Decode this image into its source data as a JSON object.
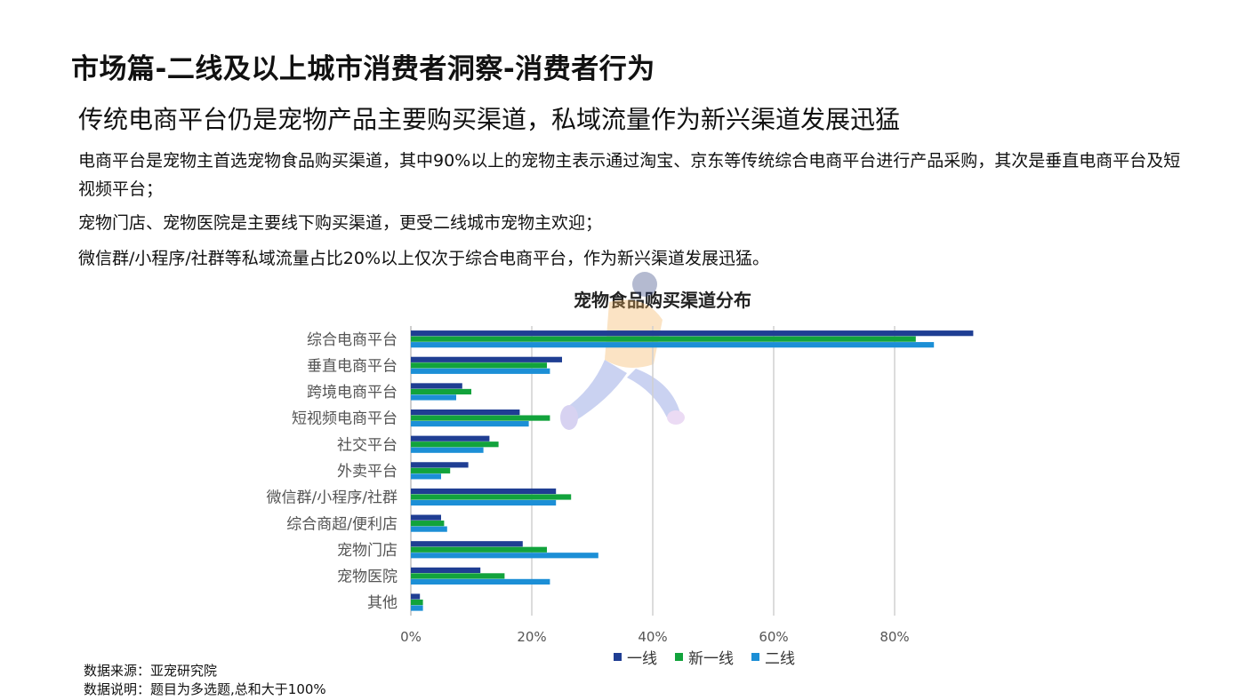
{
  "page": {
    "title": "市场篇-二线及以上城市消费者洞察-消费者行为",
    "subtitle": "传统电商平台仍是宠物产品主要购买渠道，私域流量作为新兴渠道发展迅猛",
    "paragraphs": [
      "电商平台是宠物主首选宠物食品购买渠道，其中90%以上的宠物主表示通过淘宝、京东等传统综合电商平台进行产品采购，其次是垂直电商平台及短视频平台；",
      "宠物门店、宠物医院是主要线下购买渠道，更受二线城市宠物主欢迎；",
      "微信群/小程序/社群等私域流量占比20%以上仅次于综合电商平台，作为新兴渠道发展迅猛。"
    ],
    "footnotes": [
      "数据来源：亚宠研究院",
      "数据说明：题目为多选题,总和大于100%"
    ]
  },
  "chart_data": {
    "type": "bar",
    "orientation": "horizontal",
    "title": "宠物食品购买渠道分布",
    "categories": [
      "综合电商平台",
      "垂直电商平台",
      "跨境电商平台",
      "短视频电商平台",
      "社交平台",
      "外卖平台",
      "微信群/小程序/社群",
      "综合商超/便利店",
      "宠物门店",
      "宠物医院",
      "其他"
    ],
    "series": [
      {
        "name": "一线",
        "color": "#1f3e93",
        "values": [
          93,
          25,
          8.5,
          18,
          13,
          9.5,
          24,
          5,
          18.5,
          11.5,
          1.5
        ]
      },
      {
        "name": "新一线",
        "color": "#12a33c",
        "values": [
          83.5,
          22.5,
          10,
          23,
          14.5,
          6.5,
          26.5,
          5.5,
          22.5,
          15.5,
          2
        ]
      },
      {
        "name": "二线",
        "color": "#1c8fd6",
        "values": [
          86.5,
          23,
          7.5,
          19.5,
          12,
          5,
          24,
          6,
          31,
          23,
          2
        ]
      }
    ],
    "xlim": [
      0,
      100
    ],
    "xticks": [
      "0%",
      "20%",
      "40%",
      "60%",
      "80%"
    ],
    "xtick_values": [
      0,
      20,
      40,
      60,
      80
    ],
    "grid": true,
    "legend_position": "bottom"
  }
}
